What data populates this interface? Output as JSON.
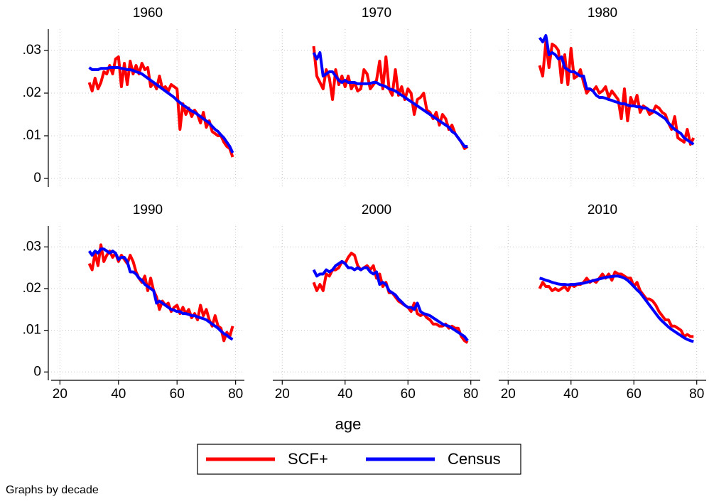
{
  "axes": {
    "xlabel": "age",
    "xlim": [
      17,
      83
    ],
    "ylim": [
      -0.002,
      0.035
    ],
    "xticks": [
      20,
      40,
      60,
      80
    ],
    "yticks": [
      0,
      {
        "value": 0.01,
        "label": ".01"
      },
      {
        "value": 0.02,
        "label": ".02"
      },
      {
        "value": 0.03,
        "label": ".03"
      }
    ],
    "grid": true
  },
  "note": "Graphs by decade",
  "legend": {
    "position": "bottom"
  },
  "chart_data": [
    {
      "type": "line",
      "title": "1960",
      "x": [
        30,
        31,
        32,
        33,
        34,
        35,
        36,
        37,
        38,
        39,
        40,
        41,
        42,
        43,
        44,
        45,
        46,
        47,
        48,
        49,
        50,
        51,
        52,
        53,
        54,
        55,
        56,
        57,
        58,
        59,
        60,
        61,
        62,
        63,
        64,
        65,
        66,
        67,
        68,
        69,
        70,
        71,
        72,
        73,
        74,
        75,
        76,
        77,
        78,
        79
      ],
      "series": [
        {
          "name": "SCF+",
          "color": "#ff0000",
          "values": [
            0.0225,
            0.0205,
            0.0235,
            0.021,
            0.0225,
            0.025,
            0.0245,
            0.0265,
            0.0245,
            0.028,
            0.0285,
            0.0215,
            0.027,
            0.022,
            0.0275,
            0.0245,
            0.0265,
            0.0245,
            0.027,
            0.0255,
            0.026,
            0.0215,
            0.0225,
            0.021,
            0.024,
            0.021,
            0.0215,
            0.0205,
            0.022,
            0.0215,
            0.021,
            0.0115,
            0.0175,
            0.015,
            0.0165,
            0.0145,
            0.016,
            0.015,
            0.013,
            0.0155,
            0.012,
            0.0135,
            0.011,
            0.0105,
            0.01,
            0.01,
            0.0085,
            0.0075,
            0.007,
            0.005
          ]
        },
        {
          "name": "Census",
          "color": "#0000ff",
          "values": [
            0.026,
            0.0255,
            0.0255,
            0.0255,
            0.0258,
            0.0258,
            0.0258,
            0.026,
            0.026,
            0.026,
            0.026,
            0.0258,
            0.0257,
            0.0255,
            0.0255,
            0.0253,
            0.025,
            0.0248,
            0.0245,
            0.024,
            0.0235,
            0.023,
            0.0225,
            0.022,
            0.0215,
            0.021,
            0.0205,
            0.02,
            0.0195,
            0.019,
            0.0183,
            0.0178,
            0.0172,
            0.0168,
            0.0163,
            0.0158,
            0.0155,
            0.015,
            0.0145,
            0.014,
            0.0135,
            0.013,
            0.0122,
            0.0115,
            0.011,
            0.0102,
            0.0095,
            0.0085,
            0.0075,
            0.006
          ]
        }
      ]
    },
    {
      "type": "line",
      "title": "1970",
      "x": [
        30,
        31,
        32,
        33,
        34,
        35,
        36,
        37,
        38,
        39,
        40,
        41,
        42,
        43,
        44,
        45,
        46,
        47,
        48,
        49,
        50,
        51,
        52,
        53,
        54,
        55,
        56,
        57,
        58,
        59,
        60,
        61,
        62,
        63,
        64,
        65,
        66,
        67,
        68,
        69,
        70,
        71,
        72,
        73,
        74,
        75,
        76,
        77,
        78,
        79
      ],
      "series": [
        {
          "name": "SCF+",
          "color": "#ff0000",
          "values": [
            0.031,
            0.024,
            0.0225,
            0.021,
            0.0255,
            0.0235,
            0.0185,
            0.0255,
            0.022,
            0.024,
            0.0215,
            0.024,
            0.021,
            0.0225,
            0.0205,
            0.021,
            0.0255,
            0.0245,
            0.021,
            0.022,
            0.023,
            0.0275,
            0.021,
            0.0285,
            0.021,
            0.0195,
            0.0255,
            0.0195,
            0.0215,
            0.0185,
            0.021,
            0.02,
            0.015,
            0.0185,
            0.019,
            0.02,
            0.016,
            0.0155,
            0.014,
            0.0155,
            0.0125,
            0.015,
            0.014,
            0.0115,
            0.0125,
            0.0105,
            0.0095,
            0.0085,
            0.007,
            0.0075
          ]
        },
        {
          "name": "Census",
          "color": "#0000ff",
          "values": [
            0.0295,
            0.028,
            0.0295,
            0.024,
            0.0245,
            0.025,
            0.025,
            0.024,
            0.023,
            0.0225,
            0.023,
            0.0225,
            0.0225,
            0.0225,
            0.0222,
            0.0222,
            0.0222,
            0.0222,
            0.0223,
            0.0225,
            0.0225,
            0.022,
            0.0218,
            0.0215,
            0.021,
            0.0208,
            0.0205,
            0.02,
            0.0195,
            0.019,
            0.0185,
            0.018,
            0.0175,
            0.017,
            0.0165,
            0.016,
            0.0155,
            0.015,
            0.0145,
            0.014,
            0.0135,
            0.013,
            0.0125,
            0.012,
            0.011,
            0.0105,
            0.0095,
            0.0085,
            0.0075,
            0.0075
          ]
        }
      ]
    },
    {
      "type": "line",
      "title": "1980",
      "x": [
        30,
        31,
        32,
        33,
        34,
        35,
        36,
        37,
        38,
        39,
        40,
        41,
        42,
        43,
        44,
        45,
        46,
        47,
        48,
        49,
        50,
        51,
        52,
        53,
        54,
        55,
        56,
        57,
        58,
        59,
        60,
        61,
        62,
        63,
        64,
        65,
        66,
        67,
        68,
        69,
        70,
        71,
        72,
        73,
        74,
        75,
        76,
        77,
        78,
        79
      ],
      "series": [
        {
          "name": "SCF+",
          "color": "#ff0000",
          "values": [
            0.0265,
            0.024,
            0.032,
            0.026,
            0.0315,
            0.031,
            0.03,
            0.0225,
            0.029,
            0.022,
            0.0305,
            0.0235,
            0.024,
            0.0255,
            0.0225,
            0.02,
            0.021,
            0.0205,
            0.0215,
            0.02,
            0.0205,
            0.0215,
            0.019,
            0.0205,
            0.0195,
            0.0185,
            0.014,
            0.021,
            0.0135,
            0.019,
            0.017,
            0.0195,
            0.0155,
            0.017,
            0.0165,
            0.015,
            0.0155,
            0.017,
            0.0165,
            0.0155,
            0.015,
            0.013,
            0.0115,
            0.0145,
            0.0095,
            0.009,
            0.0085,
            0.0115,
            0.008,
            0.0095
          ]
        },
        {
          "name": "Census",
          "color": "#0000ff",
          "values": [
            0.033,
            0.032,
            0.0335,
            0.029,
            0.0295,
            0.029,
            0.028,
            0.0285,
            0.026,
            0.0255,
            0.025,
            0.025,
            0.0245,
            0.024,
            0.024,
            0.021,
            0.021,
            0.0205,
            0.0195,
            0.019,
            0.019,
            0.0188,
            0.0185,
            0.0183,
            0.018,
            0.0178,
            0.0175,
            0.0175,
            0.0172,
            0.017,
            0.017,
            0.0168,
            0.0168,
            0.0165,
            0.0165,
            0.016,
            0.0158,
            0.0155,
            0.015,
            0.0145,
            0.014,
            0.013,
            0.0122,
            0.0115,
            0.011,
            0.0105,
            0.0095,
            0.009,
            0.0085,
            0.008
          ]
        }
      ]
    },
    {
      "type": "line",
      "title": "1990",
      "x": [
        30,
        31,
        32,
        33,
        34,
        35,
        36,
        37,
        38,
        39,
        40,
        41,
        42,
        43,
        44,
        45,
        46,
        47,
        48,
        49,
        50,
        51,
        52,
        53,
        54,
        55,
        56,
        57,
        58,
        59,
        60,
        61,
        62,
        63,
        64,
        65,
        66,
        67,
        68,
        69,
        70,
        71,
        72,
        73,
        74,
        75,
        76,
        77,
        78,
        79
      ],
      "series": [
        {
          "name": "SCF+",
          "color": "#ff0000",
          "values": [
            0.026,
            0.0245,
            0.0285,
            0.0255,
            0.0305,
            0.0265,
            0.028,
            0.029,
            0.0275,
            0.0285,
            0.0265,
            0.028,
            0.027,
            0.026,
            0.028,
            0.0265,
            0.024,
            0.0225,
            0.0215,
            0.023,
            0.0195,
            0.0225,
            0.0195,
            0.018,
            0.015,
            0.017,
            0.016,
            0.0165,
            0.0145,
            0.0155,
            0.016,
            0.014,
            0.0155,
            0.014,
            0.015,
            0.013,
            0.014,
            0.0125,
            0.016,
            0.0135,
            0.015,
            0.0125,
            0.011,
            0.0135,
            0.011,
            0.0105,
            0.0075,
            0.0095,
            0.0085,
            0.011
          ]
        },
        {
          "name": "Census",
          "color": "#0000ff",
          "values": [
            0.029,
            0.028,
            0.029,
            0.0285,
            0.0295,
            0.0295,
            0.029,
            0.0285,
            0.029,
            0.0285,
            0.027,
            0.0275,
            0.0275,
            0.0265,
            0.024,
            0.024,
            0.0235,
            0.0225,
            0.022,
            0.021,
            0.0205,
            0.02,
            0.0195,
            0.0165,
            0.017,
            0.0165,
            0.016,
            0.0155,
            0.015,
            0.0148,
            0.0145,
            0.0145,
            0.014,
            0.014,
            0.0138,
            0.0135,
            0.0135,
            0.0132,
            0.013,
            0.0128,
            0.0125,
            0.012,
            0.0115,
            0.011,
            0.0105,
            0.0098,
            0.0092,
            0.0088,
            0.0082,
            0.0078
          ]
        }
      ]
    },
    {
      "type": "line",
      "title": "2000",
      "x": [
        30,
        31,
        32,
        33,
        34,
        35,
        36,
        37,
        38,
        39,
        40,
        41,
        42,
        43,
        44,
        45,
        46,
        47,
        48,
        49,
        50,
        51,
        52,
        53,
        54,
        55,
        56,
        57,
        58,
        59,
        60,
        61,
        62,
        63,
        64,
        65,
        66,
        67,
        68,
        69,
        70,
        71,
        72,
        73,
        74,
        75,
        76,
        77,
        78,
        79
      ],
      "series": [
        {
          "name": "SCF+",
          "color": "#ff0000",
          "values": [
            0.0215,
            0.0195,
            0.021,
            0.0195,
            0.0235,
            0.023,
            0.0245,
            0.0245,
            0.025,
            0.0265,
            0.026,
            0.0275,
            0.0285,
            0.028,
            0.0255,
            0.0245,
            0.025,
            0.0255,
            0.0245,
            0.0255,
            0.0225,
            0.0235,
            0.0205,
            0.0215,
            0.019,
            0.019,
            0.018,
            0.017,
            0.0165,
            0.016,
            0.0155,
            0.0145,
            0.0165,
            0.014,
            0.0135,
            0.014,
            0.013,
            0.0125,
            0.0115,
            0.0115,
            0.011,
            0.011,
            0.0115,
            0.0105,
            0.011,
            0.0105,
            0.0105,
            0.0085,
            0.0075,
            0.007
          ]
        },
        {
          "name": "Census",
          "color": "#0000ff",
          "values": [
            0.0245,
            0.023,
            0.0235,
            0.0235,
            0.0245,
            0.024,
            0.0245,
            0.0255,
            0.026,
            0.0265,
            0.026,
            0.025,
            0.025,
            0.0245,
            0.025,
            0.0245,
            0.025,
            0.025,
            0.024,
            0.0235,
            0.024,
            0.021,
            0.0215,
            0.021,
            0.0195,
            0.019,
            0.0185,
            0.0175,
            0.0168,
            0.016,
            0.0155,
            0.0155,
            0.015,
            0.0165,
            0.0145,
            0.014,
            0.0138,
            0.0135,
            0.013,
            0.0125,
            0.012,
            0.0115,
            0.0112,
            0.011,
            0.0105,
            0.01,
            0.0095,
            0.009,
            0.0085,
            0.0075
          ]
        }
      ]
    },
    {
      "type": "line",
      "title": "2010",
      "x": [
        30,
        31,
        32,
        33,
        34,
        35,
        36,
        37,
        38,
        39,
        40,
        41,
        42,
        43,
        44,
        45,
        46,
        47,
        48,
        49,
        50,
        51,
        52,
        53,
        54,
        55,
        56,
        57,
        58,
        59,
        60,
        61,
        62,
        63,
        64,
        65,
        66,
        67,
        68,
        69,
        70,
        71,
        72,
        73,
        74,
        75,
        76,
        77,
        78,
        79
      ],
      "series": [
        {
          "name": "SCF+",
          "color": "#ff0000",
          "values": [
            0.02,
            0.0215,
            0.0205,
            0.0205,
            0.0195,
            0.02,
            0.0195,
            0.02,
            0.0205,
            0.0195,
            0.021,
            0.0205,
            0.021,
            0.021,
            0.0215,
            0.0225,
            0.0215,
            0.022,
            0.0215,
            0.0225,
            0.0235,
            0.0225,
            0.0235,
            0.022,
            0.024,
            0.0235,
            0.0235,
            0.023,
            0.0225,
            0.0225,
            0.0205,
            0.0215,
            0.0195,
            0.0185,
            0.0175,
            0.0175,
            0.017,
            0.016,
            0.0145,
            0.0135,
            0.0125,
            0.0125,
            0.011,
            0.011,
            0.0105,
            0.01,
            0.0085,
            0.009,
            0.0085,
            0.0085
          ]
        },
        {
          "name": "Census",
          "color": "#0000ff",
          "values": [
            0.0225,
            0.0223,
            0.022,
            0.0218,
            0.0215,
            0.0213,
            0.0211,
            0.021,
            0.021,
            0.0209,
            0.021,
            0.021,
            0.0211,
            0.0212,
            0.0213,
            0.0215,
            0.0217,
            0.0219,
            0.0221,
            0.0223,
            0.0225,
            0.0227,
            0.0228,
            0.0229,
            0.023,
            0.023,
            0.0228,
            0.0225,
            0.022,
            0.0213,
            0.0205,
            0.0197,
            0.019,
            0.018,
            0.017,
            0.016,
            0.015,
            0.014,
            0.013,
            0.0122,
            0.0115,
            0.0108,
            0.0102,
            0.0097,
            0.0092,
            0.0087,
            0.0082,
            0.0078,
            0.0075,
            0.0073
          ]
        }
      ]
    }
  ]
}
